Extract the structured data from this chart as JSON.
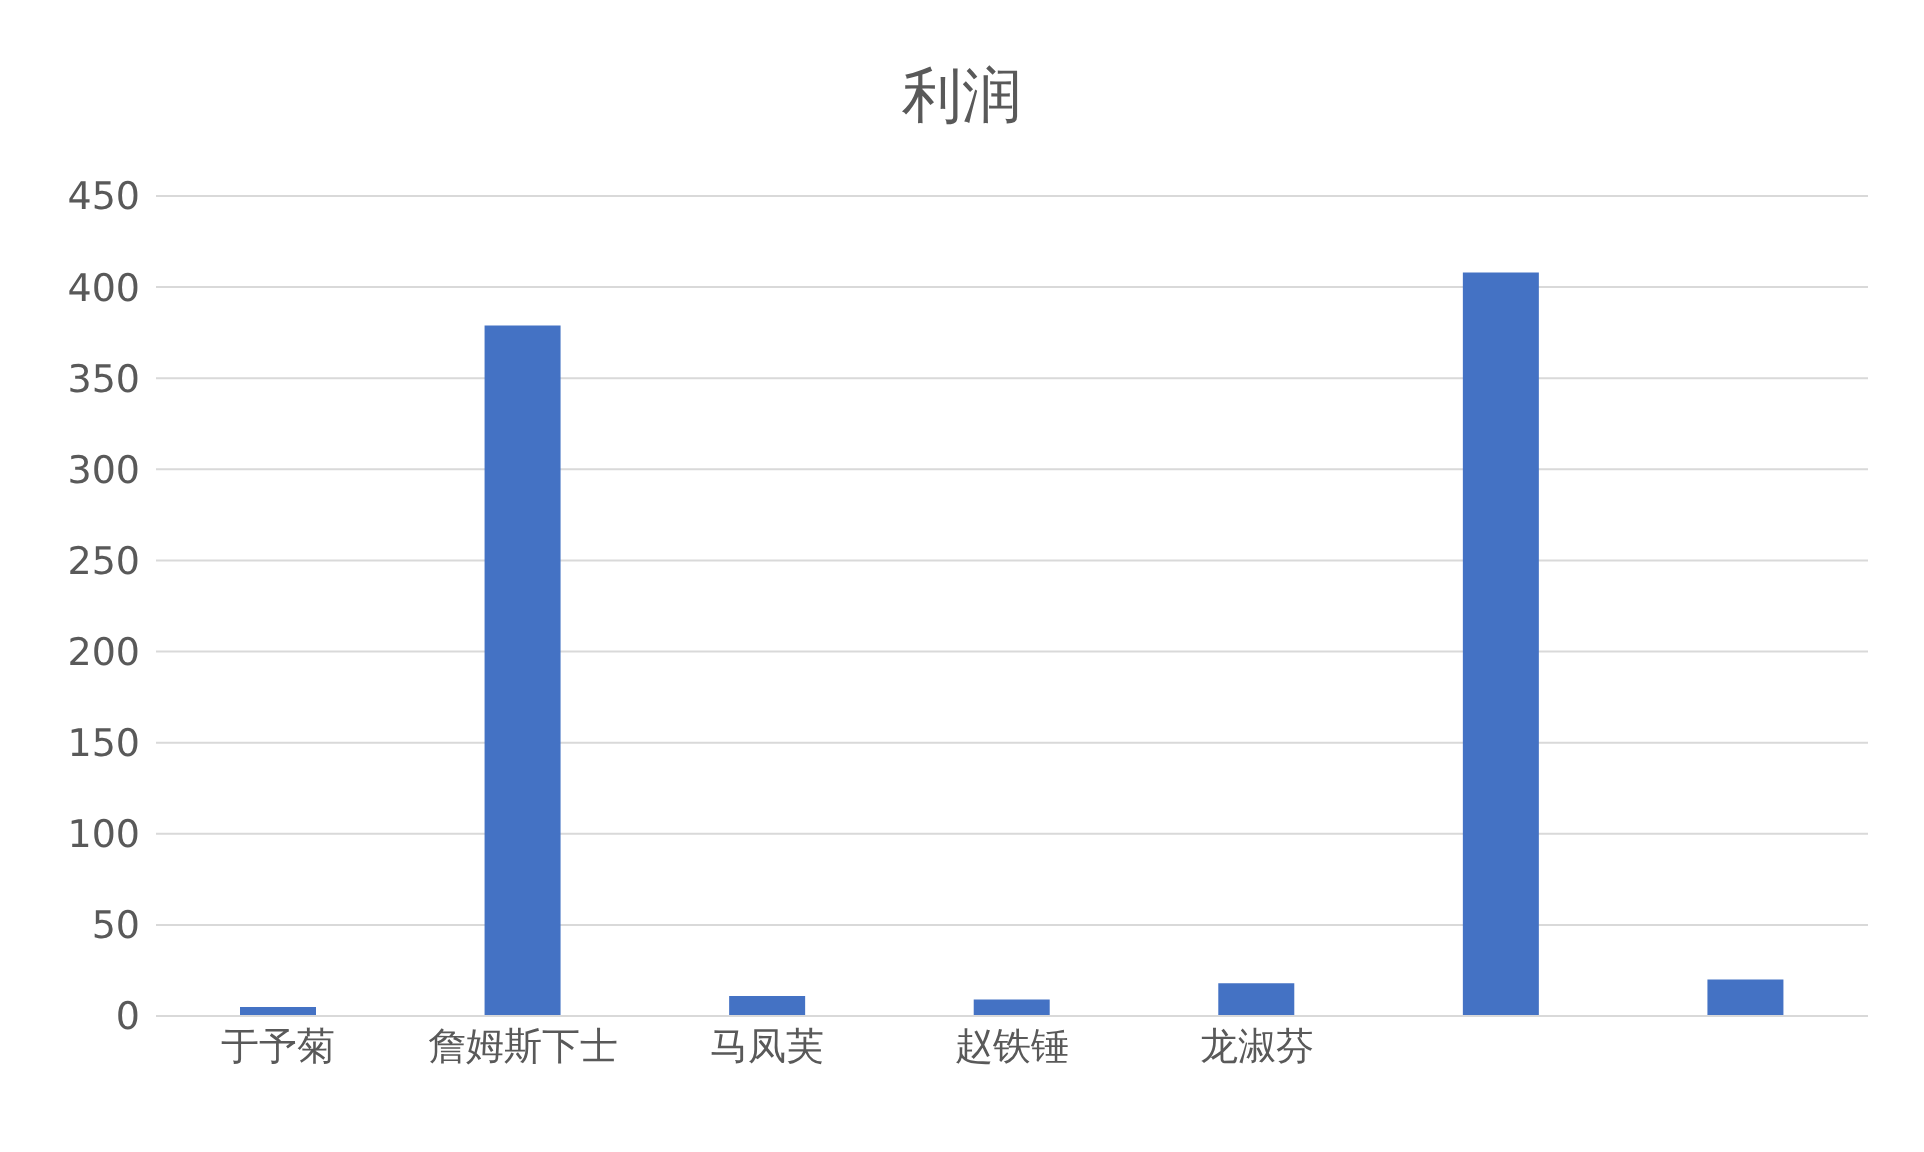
{
  "chart_data": {
    "type": "bar",
    "title": "利润",
    "categories": [
      "于予菊",
      "詹姆斯下士",
      "马凤芙",
      "赵铁锤",
      "龙淑芬",
      null,
      null
    ],
    "values": [
      5,
      379,
      11,
      9,
      18,
      408,
      20
    ],
    "color": "#4472c4",
    "ylim": [
      0,
      450
    ],
    "yticks": [
      0,
      50,
      100,
      150,
      200,
      250,
      300,
      350,
      400,
      450
    ],
    "grid": "y"
  }
}
